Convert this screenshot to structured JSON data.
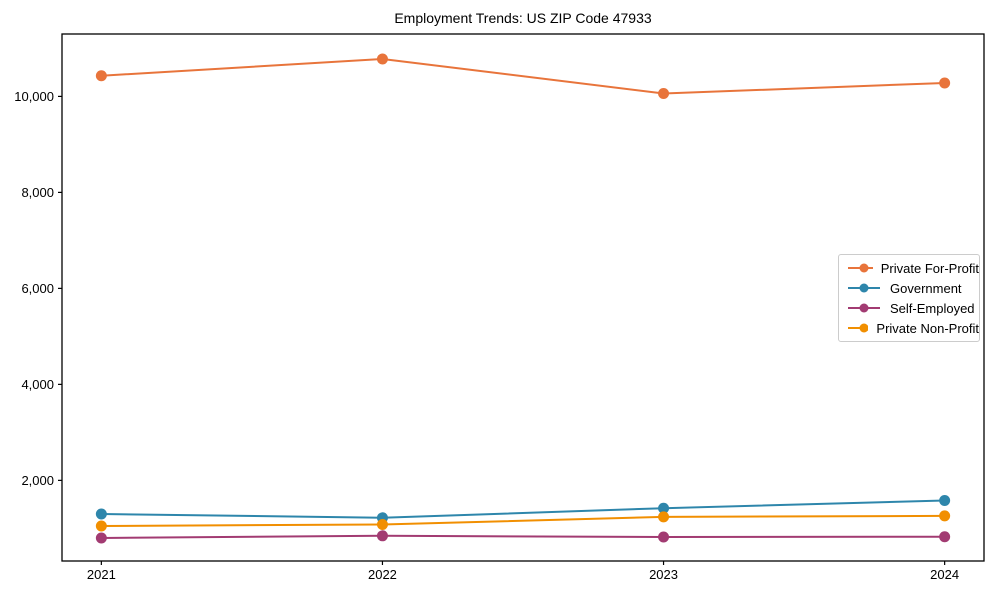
{
  "figure": {
    "background": "#ffffff",
    "axis_color": "#000000",
    "legend_border_color": "#cccccc"
  },
  "chart_data": {
    "type": "line",
    "title": "Employment Trends: US ZIP Code 47933",
    "categories": [
      "2021",
      "2022",
      "2023",
      "2024"
    ],
    "series": [
      {
        "name": "Private For-Profit",
        "color": "#e8743b",
        "values": [
          10430,
          10780,
          10060,
          10280
        ]
      },
      {
        "name": "Government",
        "color": "#2e86ab",
        "values": [
          1300,
          1220,
          1420,
          1580
        ]
      },
      {
        "name": "Self-Employed",
        "color": "#a23b72",
        "values": [
          800,
          845,
          820,
          825
        ]
      },
      {
        "name": "Private Non-Profit",
        "color": "#f18f01",
        "values": [
          1050,
          1080,
          1240,
          1260
        ]
      }
    ],
    "yticks": {
      "values": [
        2000,
        4000,
        6000,
        8000,
        10000
      ],
      "labels": [
        "2,000",
        "4,000",
        "6,000",
        "8,000",
        "10,000"
      ]
    },
    "ylim": [
      320,
      11300
    ],
    "xlim": [
      -0.14,
      3.14
    ],
    "xlabel": "",
    "ylabel": "",
    "grid": false,
    "legend_position": "center-right"
  }
}
